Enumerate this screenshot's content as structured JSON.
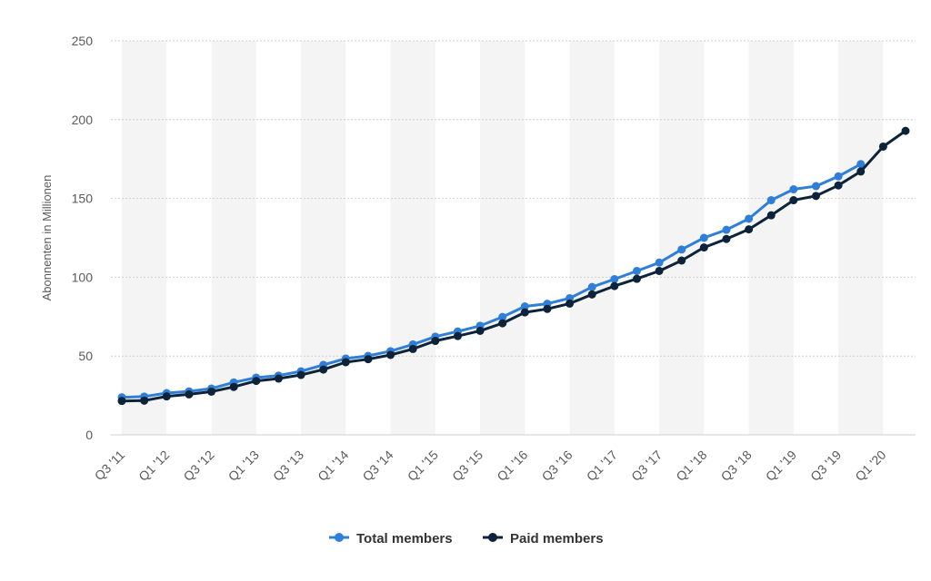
{
  "chart_data": {
    "type": "line",
    "ylabel": "Abonnenten in Millionen",
    "xlabel": "",
    "ylim": [
      0,
      250
    ],
    "yticks": [
      0,
      50,
      100,
      150,
      200,
      250
    ],
    "grid": true,
    "legend_position": "bottom-center",
    "x": [
      "Q3 '11",
      "Q4 '11",
      "Q1 '12",
      "Q2 '12",
      "Q3 '12",
      "Q4 '12",
      "Q1 '13",
      "Q2 '13",
      "Q3 '13",
      "Q4 '13",
      "Q1 '14",
      "Q2 '14",
      "Q3 '14",
      "Q4 '14",
      "Q1 '15",
      "Q2 '15",
      "Q3 '15",
      "Q4 '15",
      "Q1 '16",
      "Q2 '16",
      "Q3 '16",
      "Q4 '16",
      "Q1 '17",
      "Q2 '17",
      "Q3 '17",
      "Q4 '17",
      "Q1 '18",
      "Q2 '18",
      "Q3 '18",
      "Q4 '18",
      "Q1 '19",
      "Q2 '19",
      "Q3 '19",
      "Q4 '19",
      "Q1 '20",
      "Q2 '20"
    ],
    "x_tick_labels": [
      "Q3 '11",
      "Q1 '12",
      "Q3 '12",
      "Q1 '13",
      "Q3 '13",
      "Q1 '14",
      "Q3 '14",
      "Q1 '15",
      "Q3 '15",
      "Q1 '16",
      "Q3 '16",
      "Q1 '17",
      "Q3 '17",
      "Q1 '18",
      "Q3 '18",
      "Q1 '19",
      "Q3 '19",
      "Q1 '20"
    ],
    "series": [
      {
        "name": "Total members",
        "color": "#2f7ed8",
        "values": [
          23.8,
          24.3,
          26.5,
          27.6,
          29.4,
          33.3,
          36.3,
          37.6,
          40.3,
          44.4,
          48.4,
          50.1,
          53.1,
          57.4,
          62.3,
          65.6,
          69.2,
          74.8,
          81.5,
          83.2,
          86.7,
          93.8,
          98.8,
          104.0,
          109.3,
          117.6,
          125.0,
          130.1,
          137.1,
          148.9,
          155.8,
          157.8,
          164.0,
          171.8,
          null,
          null
        ]
      },
      {
        "name": "Paid members",
        "color": "#0d233a",
        "values": [
          21.5,
          21.7,
          24.4,
          25.7,
          27.4,
          30.4,
          34.2,
          35.7,
          38.0,
          41.4,
          46.1,
          48.0,
          50.7,
          54.5,
          59.6,
          62.7,
          66.0,
          70.8,
          77.7,
          79.9,
          83.3,
          89.1,
          94.4,
          99.0,
          104.0,
          110.6,
          118.9,
          124.3,
          130.4,
          139.3,
          148.9,
          151.6,
          158.3,
          167.1,
          182.9,
          192.9
        ]
      }
    ]
  }
}
